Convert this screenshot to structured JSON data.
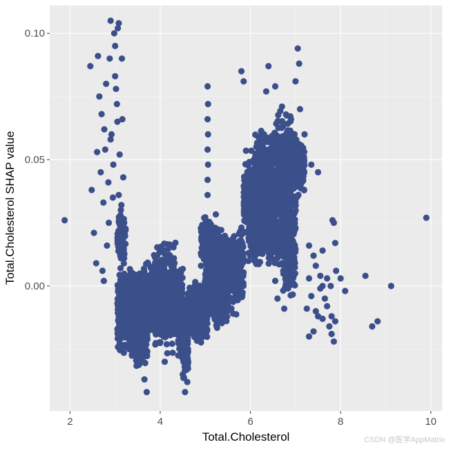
{
  "chart_data": {
    "type": "scatter",
    "title": "",
    "xlabel": "Total.Cholesterol",
    "ylabel": "Total.Cholesterol SHAP value",
    "xlim": [
      1.55,
      10.25
    ],
    "ylim": [
      -0.0495,
      0.111
    ],
    "x_ticks": [
      2,
      4,
      6,
      8,
      10
    ],
    "x_tick_labels": [
      "2",
      "4",
      "6",
      "8",
      "10"
    ],
    "y_ticks": [
      0.0,
      0.05,
      0.1
    ],
    "y_tick_labels": [
      "0.00",
      "0.05",
      "0.10"
    ],
    "grid": true,
    "point_color": "#3b4f8a",
    "panel_color": "#ebebeb",
    "grid_color": "#ffffff",
    "points": [
      [
        1.88,
        0.026
      ],
      [
        2.45,
        0.087
      ],
      [
        2.48,
        0.038
      ],
      [
        2.53,
        0.021
      ],
      [
        2.6,
        0.053
      ],
      [
        2.62,
        0.091
      ],
      [
        2.65,
        0.075
      ],
      [
        2.68,
        0.045
      ],
      [
        2.72,
        0.006
      ],
      [
        2.75,
        0.002
      ],
      [
        2.78,
        0.054
      ],
      [
        2.8,
        0.08
      ],
      [
        2.82,
        0.016
      ],
      [
        2.85,
        0.041
      ],
      [
        2.88,
        0.09
      ],
      [
        2.9,
        0.105
      ],
      [
        2.92,
        0.06
      ],
      [
        2.95,
        0.035
      ],
      [
        2.98,
        0.1
      ],
      [
        3.0,
        0.083
      ],
      [
        3.02,
        0.078
      ],
      [
        3.05,
        0.065
      ],
      [
        3.06,
        0.102
      ],
      [
        3.08,
        0.104
      ],
      [
        3.1,
        0.052
      ],
      [
        3.12,
        0.028
      ],
      [
        3.14,
        0.019
      ],
      [
        3.16,
        0.066
      ],
      [
        3.18,
        0.043
      ],
      [
        3.2,
        0.011
      ],
      [
        2.7,
        0.068
      ],
      [
        2.76,
        0.062
      ],
      [
        2.96,
        0.048
      ],
      [
        3.04,
        0.072
      ],
      [
        2.86,
        0.025
      ],
      [
        3.0,
        0.095
      ],
      [
        3.12,
        0.007
      ],
      [
        2.58,
        0.009
      ],
      [
        2.9,
        0.058
      ],
      [
        3.08,
        0.036
      ],
      [
        2.74,
        0.033
      ],
      [
        3.15,
        0.09
      ],
      [
        3.7,
        -0.042
      ],
      [
        4.55,
        -0.042
      ],
      [
        4.5,
        -0.035
      ],
      [
        4.6,
        -0.038
      ],
      [
        3.65,
        -0.037
      ],
      [
        4.1,
        -0.03
      ],
      [
        5.05,
        0.079
      ],
      [
        5.06,
        0.072
      ],
      [
        5.05,
        0.066
      ],
      [
        5.06,
        0.06
      ],
      [
        5.05,
        0.054
      ],
      [
        5.06,
        0.048
      ],
      [
        5.05,
        0.042
      ],
      [
        5.05,
        0.036
      ],
      [
        5.8,
        0.085
      ],
      [
        5.85,
        0.081
      ],
      [
        6.4,
        0.087
      ],
      [
        6.35,
        0.077
      ],
      [
        6.55,
        0.079
      ],
      [
        7.0,
        0.081
      ],
      [
        7.05,
        0.094
      ],
      [
        7.08,
        0.088
      ],
      [
        6.7,
        0.071
      ],
      [
        6.9,
        0.066
      ],
      [
        7.1,
        0.07
      ],
      [
        7.2,
        0.06
      ],
      [
        7.35,
        0.048
      ],
      [
        7.5,
        0.045
      ],
      [
        7.0,
        0.054
      ],
      [
        7.3,
        0.016
      ],
      [
        7.4,
        0.012
      ],
      [
        7.45,
        0.008
      ],
      [
        7.6,
        0.014
      ],
      [
        7.55,
        0.004
      ],
      [
        7.7,
        0.003
      ],
      [
        7.78,
        0.0
      ],
      [
        7.82,
        0.026
      ],
      [
        7.85,
        0.025
      ],
      [
        7.88,
        0.017
      ],
      [
        7.9,
        0.006
      ],
      [
        8.0,
        0.003
      ],
      [
        8.1,
        -0.002
      ],
      [
        7.25,
        -0.009
      ],
      [
        7.3,
        -0.02
      ],
      [
        7.4,
        -0.018
      ],
      [
        7.5,
        -0.012
      ],
      [
        7.6,
        -0.013
      ],
      [
        7.65,
        -0.005
      ],
      [
        7.7,
        -0.008
      ],
      [
        7.75,
        -0.016
      ],
      [
        7.8,
        -0.019
      ],
      [
        7.85,
        -0.022
      ],
      [
        7.3,
        0.003
      ],
      [
        7.35,
        -0.004
      ],
      [
        7.45,
        -0.01
      ],
      [
        7.55,
        -0.001
      ],
      [
        7.6,
        0.0
      ],
      [
        7.8,
        -0.012
      ],
      [
        7.88,
        -0.014
      ],
      [
        8.55,
        0.004
      ],
      [
        8.7,
        -0.016
      ],
      [
        8.82,
        -0.014
      ],
      [
        9.12,
        0.0
      ],
      [
        9.9,
        0.027
      ],
      [
        6.75,
        -0.009
      ],
      [
        6.6,
        -0.005
      ],
      [
        6.55,
        0.002
      ]
    ],
    "clusters": [
      {
        "x": [
          3.05,
          3.65
        ],
        "ymin": -0.03,
        "ymax": 0.009,
        "n": 650,
        "spread": 0.85
      },
      {
        "x": [
          3.45,
          3.72
        ],
        "ymin": -0.037,
        "ymax": -0.01,
        "n": 140,
        "spread": 0.8
      },
      {
        "x": [
          3.6,
          4.15
        ],
        "ymin": -0.025,
        "ymax": 0.015,
        "n": 520,
        "spread": 0.8
      },
      {
        "x": [
          3.85,
          4.35
        ],
        "ymin": -0.028,
        "ymax": 0.02,
        "n": 380,
        "spread": 0.9
      },
      {
        "x": [
          4.2,
          4.5
        ],
        "ymin": -0.02,
        "ymax": 0.012,
        "n": 240,
        "spread": 0.9
      },
      {
        "x": [
          4.5,
          4.62
        ],
        "ymin": -0.04,
        "ymax": -0.002,
        "n": 180,
        "spread": 0.85
      },
      {
        "x": [
          4.62,
          5.05
        ],
        "ymin": -0.025,
        "ymax": 0.005,
        "n": 460,
        "spread": 0.8
      },
      {
        "x": [
          5.0,
          5.5
        ],
        "ymin": -0.02,
        "ymax": 0.02,
        "n": 500,
        "spread": 0.8
      },
      {
        "x": [
          5.3,
          5.85
        ],
        "ymin": -0.012,
        "ymax": 0.025,
        "n": 420,
        "spread": 0.85
      },
      {
        "x": [
          4.9,
          5.3
        ],
        "ymin": 0.005,
        "ymax": 0.03,
        "n": 150,
        "spread": 0.9
      },
      {
        "x": [
          5.85,
          6.2
        ],
        "ymin": 0.015,
        "ymax": 0.055,
        "n": 420,
        "spread": 0.8
      },
      {
        "x": [
          5.95,
          6.5
        ],
        "ymin": 0.005,
        "ymax": 0.045,
        "n": 300,
        "spread": 0.85
      },
      {
        "x": [
          6.2,
          6.9
        ],
        "ymin": 0.02,
        "ymax": 0.055,
        "n": 480,
        "spread": 0.8
      },
      {
        "x": [
          6.4,
          7.0
        ],
        "ymin": 0.005,
        "ymax": 0.035,
        "n": 220,
        "spread": 0.9
      },
      {
        "x": [
          6.9,
          7.2
        ],
        "ymin": 0.03,
        "ymax": 0.065,
        "n": 140,
        "spread": 0.9
      },
      {
        "x": [
          6.5,
          6.9
        ],
        "ymin": 0.04,
        "ymax": 0.07,
        "n": 120,
        "spread": 0.9
      },
      {
        "x": [
          6.1,
          6.5
        ],
        "ymin": 0.04,
        "ymax": 0.065,
        "n": 100,
        "spread": 0.9
      },
      {
        "x": [
          3.05,
          3.25
        ],
        "ymin": 0.005,
        "ymax": 0.035,
        "n": 60,
        "spread": 0.9
      },
      {
        "x": [
          4.4,
          4.6
        ],
        "ymin": -0.03,
        "ymax": -0.015,
        "n": 60,
        "spread": 0.9
      },
      {
        "x": [
          6.7,
          7.0
        ],
        "ymin": -0.005,
        "ymax": 0.015,
        "n": 60,
        "spread": 0.9
      }
    ]
  },
  "watermark": "CSDN @医学AppMatrix"
}
